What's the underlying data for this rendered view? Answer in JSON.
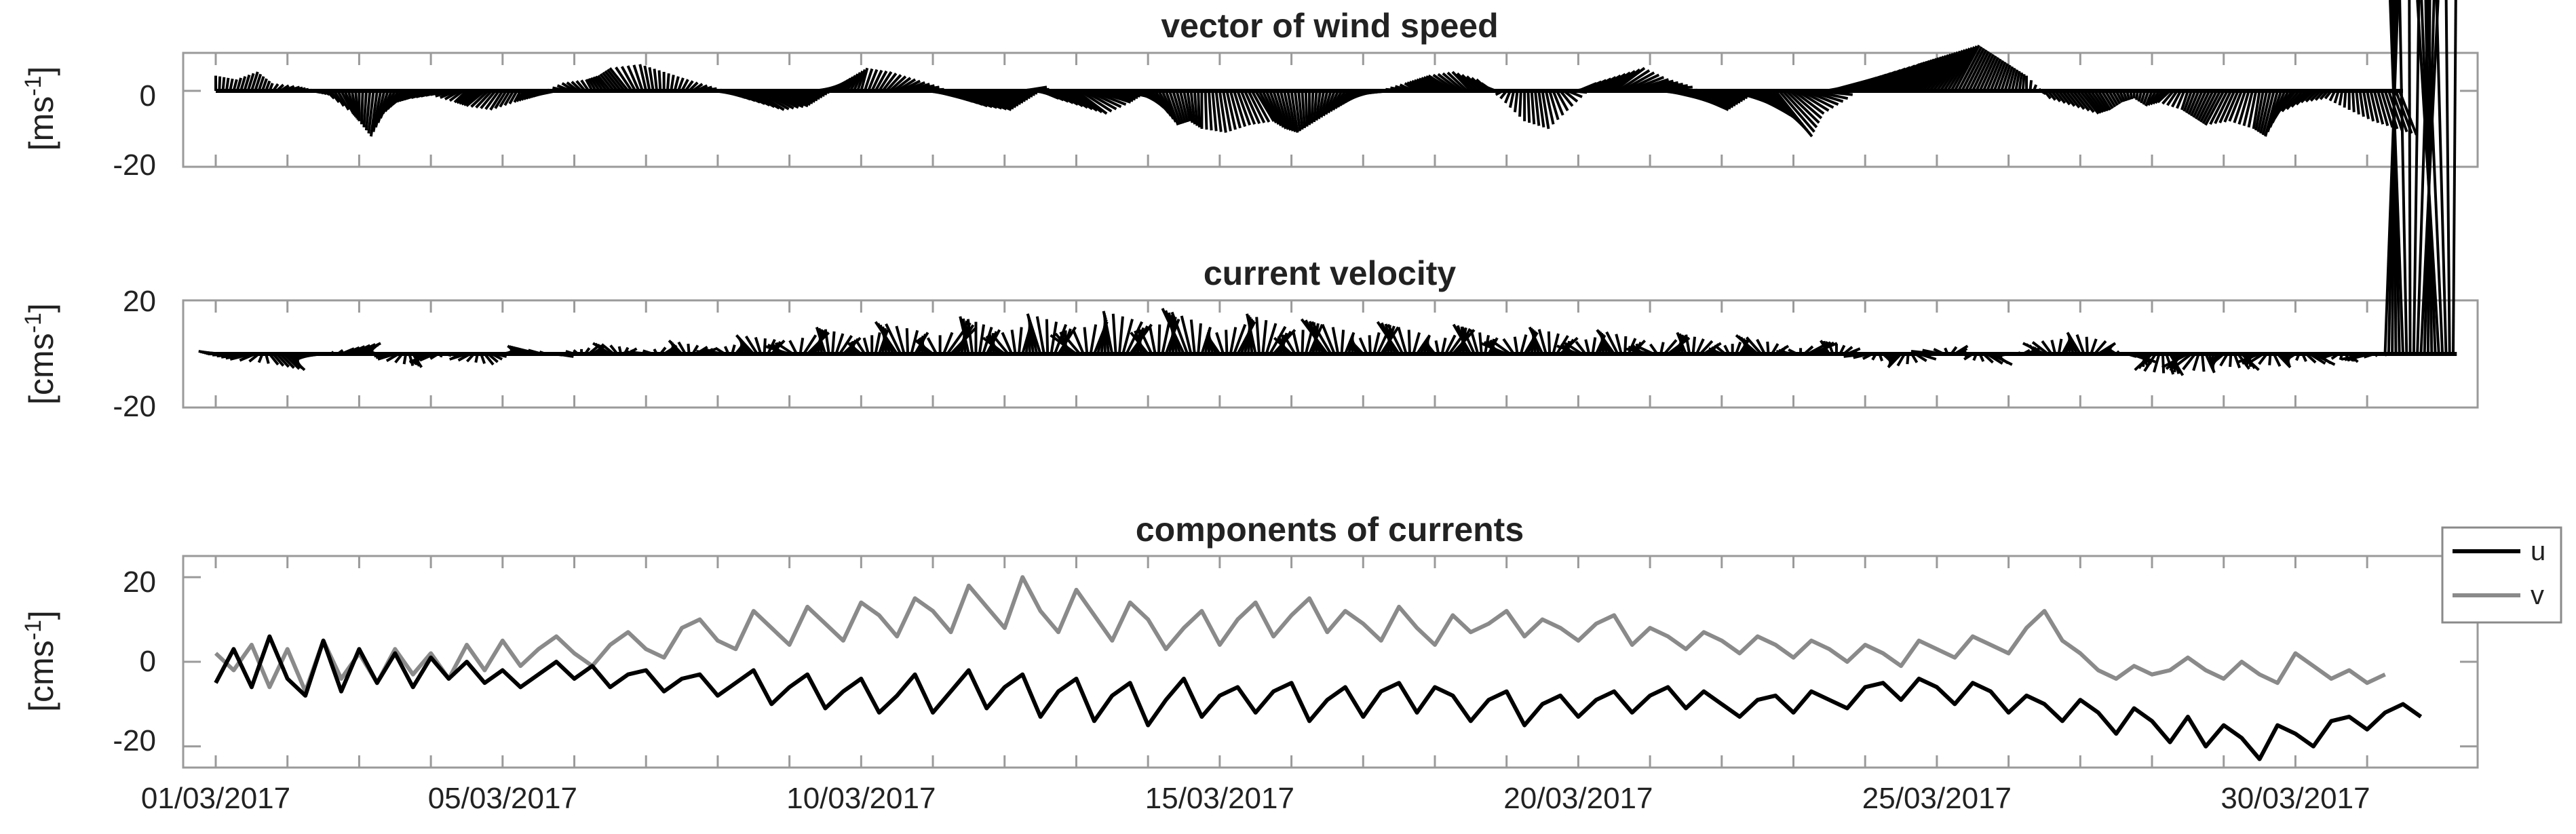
{
  "chart_data": [
    {
      "type": "quiver",
      "title": "vector of wind speed",
      "ylabel": "[ms",
      "ylabel_sup": "-1",
      "ylim": [
        -20,
        10
      ],
      "yticks": [
        0,
        -20
      ],
      "xlim": [
        "01/03/2017",
        "31/03/2017 12:00"
      ],
      "grid": false,
      "samples_per_day": 4,
      "u": [
        0,
        0.5,
        1,
        0.5,
        2,
        1.5,
        1,
        2,
        0,
        -1,
        -2,
        -3,
        -4,
        -3,
        -2,
        -3,
        -2,
        -1,
        -2,
        -3,
        -2,
        -1,
        -2,
        -3,
        -1,
        0,
        1,
        2,
        3,
        4,
        5,
        6,
        5,
        4,
        3,
        2,
        1,
        2,
        3,
        4,
        5,
        6,
        7,
        6,
        5,
        4,
        3,
        4,
        5,
        6,
        5,
        4,
        3,
        2,
        1,
        0,
        1,
        2,
        3,
        2,
        1,
        0,
        -1,
        -2,
        -3,
        -4,
        -3,
        -2,
        -3,
        -4,
        -3,
        -2,
        -1,
        0,
        1,
        2,
        3,
        4,
        5,
        6,
        7,
        8,
        7,
        6,
        5,
        6,
        7,
        6,
        5,
        6,
        7,
        8,
        9,
        8,
        7,
        6,
        5,
        4,
        3,
        2,
        1,
        0,
        1,
        2,
        3,
        2,
        1,
        0,
        -1,
        -2,
        -1,
        -2,
        -3,
        -2,
        -1,
        -2,
        -3,
        -2,
        -1,
        0,
        1,
        2,
        3
      ],
      "v": [
        4,
        3,
        5,
        2,
        1,
        0,
        -1,
        -6,
        -8,
        -12,
        -6,
        -3,
        -2,
        -1,
        -3,
        -4,
        -5,
        -3,
        -2,
        -1,
        2,
        3,
        4,
        6,
        7,
        5,
        3,
        1,
        -1,
        -3,
        -5,
        -4,
        -2,
        0,
        2,
        4,
        6,
        5,
        3,
        1,
        -2,
        -4,
        -5,
        -3,
        -1,
        1,
        -2,
        -4,
        -6,
        -3,
        -1,
        -2,
        -5,
        -9,
        -8,
        -10,
        -11,
        -9,
        -8,
        -10,
        -11,
        -9,
        -7,
        -5,
        -3,
        -1,
        0,
        2,
        3,
        4,
        5,
        3,
        -2,
        -8,
        -10,
        -4,
        2,
        4,
        6,
        3,
        1,
        -3,
        -5,
        -3,
        -1,
        -4,
        -8,
        -12,
        -6,
        -2,
        3,
        5,
        7,
        8,
        9,
        10,
        11,
        12,
        10,
        8,
        6,
        4,
        -2,
        -4,
        -6,
        -5,
        -3,
        -2,
        -4,
        -3,
        -5,
        -7,
        -9,
        -8,
        -10,
        -12,
        -6,
        -3,
        -2,
        -5,
        -8,
        -10,
        -12,
        -14,
        -13,
        -10
      ]
    },
    {
      "type": "quiver",
      "title": "current velocity",
      "ylabel": "[cms",
      "ylabel_sup": "-1",
      "ylim": [
        -20,
        20
      ],
      "yticks": [
        20,
        -20
      ],
      "xlim": [
        "01/03/2017",
        "31/03/2017 12:00"
      ],
      "grid": false,
      "samples_per_day": 4,
      "u": [
        -4,
        -6,
        -5,
        2,
        4,
        -3,
        -6,
        3,
        5,
        -2,
        -4,
        2,
        -5,
        3,
        -4,
        2,
        3,
        -3,
        -5,
        4,
        -2,
        3,
        -4,
        2,
        -6,
        3,
        -3,
        4,
        -5,
        2,
        -4,
        3,
        -6,
        5,
        -2,
        4,
        -3,
        2,
        -5,
        3,
        -4,
        6,
        -2,
        3,
        -5,
        2,
        -3,
        4,
        -6,
        3,
        -2,
        5,
        -4,
        3,
        -5,
        2,
        -3,
        4,
        -2,
        5,
        -4,
        3,
        -6,
        2,
        -3,
        4,
        -5,
        3,
        -2,
        5,
        -4,
        2,
        -6,
        3,
        -3,
        4,
        -5,
        2,
        -4,
        3,
        -6,
        5,
        -2,
        4,
        -3,
        2,
        -5,
        3,
        -4,
        6,
        -2,
        3,
        -5,
        2,
        -3,
        4,
        -6,
        3,
        -2,
        5,
        -4,
        3,
        -5,
        2,
        -3,
        4,
        -2,
        5,
        -4,
        3,
        -6,
        2,
        -3,
        4,
        -5,
        3,
        -2,
        5,
        -4,
        2,
        -6,
        3,
        -3,
        4,
        -5,
        2
      ],
      "v": [
        1,
        0,
        -2,
        -4,
        -6,
        -3,
        -1,
        2,
        4,
        1,
        -2,
        -5,
        -3,
        0,
        -2,
        -4,
        1,
        3,
        2,
        -1,
        1,
        3,
        4,
        2,
        0,
        3,
        5,
        2,
        1,
        4,
        7,
        5,
        3,
        8,
        10,
        6,
        4,
        9,
        12,
        8,
        5,
        10,
        14,
        9,
        6,
        11,
        15,
        10,
        7,
        12,
        16,
        11,
        8,
        13,
        17,
        10,
        7,
        12,
        15,
        9,
        6,
        11,
        13,
        8,
        5,
        10,
        12,
        7,
        4,
        9,
        11,
        6,
        4,
        8,
        10,
        6,
        3,
        7,
        9,
        5,
        2,
        6,
        8,
        4,
        2,
        5,
        7,
        3,
        1,
        4,
        5,
        2,
        -1,
        -3,
        -5,
        -2,
        1,
        3,
        -2,
        -4,
        -1,
        2,
        4,
        6,
        8,
        4,
        2,
        -3,
        -6,
        -8,
        -5,
        -7,
        -4,
        -6,
        -3,
        -5,
        -2,
        -4,
        -1,
        -3,
        -2,
        0
      ]
    },
    {
      "type": "line",
      "title": "components of currents",
      "ylabel": "[cms",
      "ylabel_sup": "-1",
      "ylim": [
        -25,
        25
      ],
      "yticks": [
        20,
        0,
        -20
      ],
      "x_ticks": [
        "01/03/2017",
        "05/03/2017",
        "10/03/2017",
        "15/03/2017",
        "20/03/2017",
        "25/03/2017",
        "30/03/2017"
      ],
      "xlim": [
        "01/03/2017",
        "31/03/2017 12:00"
      ],
      "grid": false,
      "legend_position": "outside-top-right",
      "samples_per_day": 4,
      "series": [
        {
          "name": "u",
          "color": "#000000",
          "values": [
            -5,
            3,
            -6,
            6,
            -4,
            -8,
            5,
            -7,
            3,
            -5,
            2,
            -6,
            1,
            -4,
            0,
            -5,
            -2,
            -6,
            -3,
            0,
            -4,
            -1,
            -6,
            -3,
            -2,
            -7,
            -4,
            -3,
            -8,
            -5,
            -2,
            -10,
            -6,
            -3,
            -11,
            -7,
            -4,
            -12,
            -8,
            -3,
            -12,
            -7,
            -2,
            -11,
            -6,
            -3,
            -13,
            -7,
            -4,
            -14,
            -8,
            -5,
            -15,
            -9,
            -4,
            -13,
            -8,
            -6,
            -12,
            -7,
            -5,
            -14,
            -9,
            -6,
            -13,
            -7,
            -5,
            -12,
            -6,
            -8,
            -14,
            -9,
            -7,
            -15,
            -10,
            -8,
            -13,
            -9,
            -7,
            -12,
            -8,
            -6,
            -11,
            -7,
            -10,
            -13,
            -9,
            -8,
            -12,
            -7,
            -9,
            -11,
            -6,
            -5,
            -9,
            -4,
            -6,
            -10,
            -5,
            -7,
            -12,
            -8,
            -10,
            -14,
            -9,
            -12,
            -17,
            -11,
            -14,
            -19,
            -13,
            -20,
            -15,
            -18,
            -23,
            -15,
            -17,
            -20,
            -14,
            -13,
            -16,
            -12,
            -10,
            -13
          ]
        },
        {
          "name": "v",
          "color": "#8a8a8a",
          "values": [
            2,
            -2,
            4,
            -6,
            3,
            -7,
            5,
            -4,
            2,
            -5,
            3,
            -3,
            2,
            -4,
            4,
            -2,
            5,
            -1,
            3,
            6,
            2,
            -1,
            4,
            7,
            3,
            1,
            8,
            10,
            5,
            3,
            12,
            8,
            4,
            13,
            9,
            5,
            14,
            11,
            6,
            15,
            12,
            7,
            18,
            13,
            8,
            20,
            12,
            7,
            17,
            11,
            5,
            14,
            10,
            3,
            8,
            12,
            4,
            10,
            14,
            6,
            11,
            15,
            7,
            12,
            9,
            5,
            13,
            8,
            4,
            11,
            7,
            9,
            12,
            6,
            10,
            8,
            5,
            9,
            11,
            4,
            8,
            6,
            3,
            7,
            5,
            2,
            6,
            4,
            1,
            5,
            3,
            0,
            4,
            2,
            -1,
            5,
            3,
            1,
            6,
            4,
            2,
            8,
            12,
            5,
            2,
            -2,
            -4,
            -1,
            -3,
            -2,
            1,
            -2,
            -4,
            0,
            -3,
            -5,
            2,
            -1,
            -4,
            -2,
            -5,
            -3
          ]
        }
      ]
    }
  ]
}
